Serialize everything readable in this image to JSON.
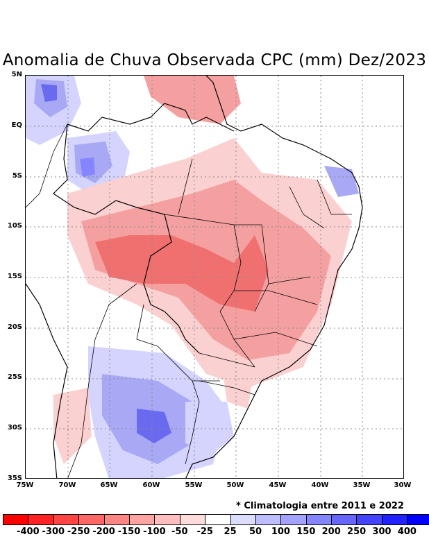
{
  "title": "Anomalia de Chuva Observada CPC (mm) Dez/2023",
  "footnote": "* Climatologia entre 2011 e 2022",
  "lat_labels": [
    "5N",
    "EQ",
    "5S",
    "10S",
    "15S",
    "20S",
    "25S",
    "30S",
    "35S"
  ],
  "lon_labels": [
    "75W",
    "70W",
    "65W",
    "60W",
    "55W",
    "50W",
    "45W",
    "40W",
    "35W",
    "30W"
  ],
  "colorbar": {
    "colors": [
      "#ff0000",
      "#ff2222",
      "#ff4444",
      "#ff6666",
      "#ff8585",
      "#ffa3a3",
      "#ffbdbd",
      "#ffdcdc",
      "#ffffff",
      "#dcdcff",
      "#bdbdff",
      "#a3a3ff",
      "#8585ff",
      "#6666ff",
      "#4444ff",
      "#2222ff",
      "#0000ff"
    ],
    "labels": [
      "-400",
      "-300",
      "-250",
      "-200",
      "-150",
      "-100",
      "-50",
      "-25",
      "25",
      "50",
      "100",
      "150",
      "200",
      "250",
      "300",
      "400"
    ]
  },
  "colors": {
    "dry_strong": "#f07070",
    "dry_mid": "#f5a0a0",
    "dry_light": "#fbd0d0",
    "wet_light": "#d4d4ff",
    "wet_mid": "#a8a8f5",
    "wet_strong": "#6a6af0",
    "grid": "#888888",
    "border": "#000000"
  }
}
